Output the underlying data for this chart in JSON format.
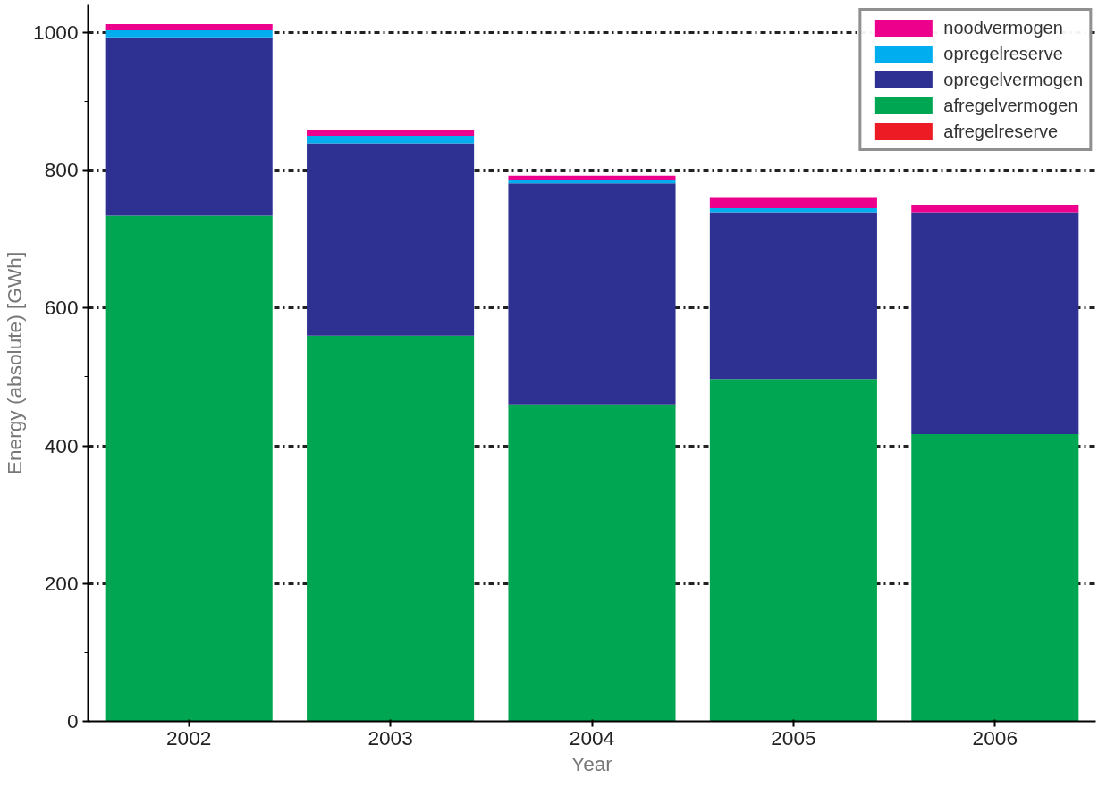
{
  "chart_data": {
    "type": "bar",
    "stacked": true,
    "xlabel": "Year",
    "ylabel": "Energy (absolute) [GWh]",
    "categories": [
      "2002",
      "2003",
      "2004",
      "2005",
      "2006"
    ],
    "series": [
      {
        "name": "afregelreserve",
        "color": "#ed1c24",
        "values": [
          0,
          0,
          0,
          0,
          0
        ]
      },
      {
        "name": "afregelvermogen",
        "color": "#00a651",
        "values": [
          734,
          560,
          460,
          497,
          417
        ]
      },
      {
        "name": "opregelvermogen",
        "color": "#2e3192",
        "values": [
          259,
          279,
          321,
          242,
          322
        ]
      },
      {
        "name": "opregelreserve",
        "color": "#00aeef",
        "values": [
          10,
          11,
          5,
          6,
          0
        ]
      },
      {
        "name": "noodvermogen",
        "color": "#ec008c",
        "values": [
          9,
          9,
          6,
          15,
          10
        ]
      }
    ],
    "ylim": [
      0,
      1040
    ],
    "yticks": [
      0,
      200,
      400,
      600,
      800,
      1000
    ],
    "grid": "y",
    "legend": "top right"
  }
}
